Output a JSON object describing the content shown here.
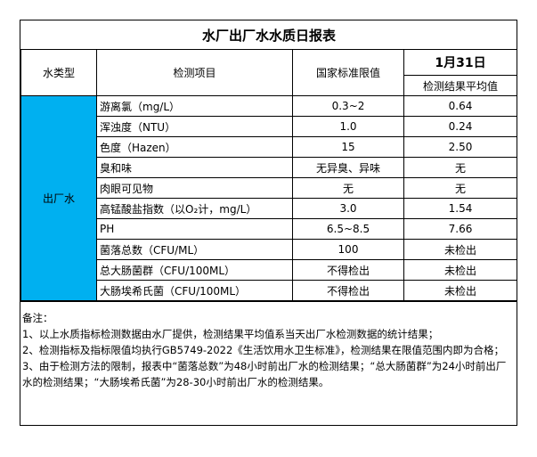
{
  "title": "水厂出厂水水质日报表",
  "header": {
    "water_type": "水类型",
    "item": "检测项目",
    "limit": "国家标准限值",
    "date": "1月31日",
    "result": "检测结果平均值"
  },
  "water_type_value": "出厂水",
  "water_type_color": "#00b0f0",
  "rows": [
    {
      "item": "游离氯（mg/L）",
      "limit": "0.3~2",
      "result": "0.64"
    },
    {
      "item": "浑浊度（NTU）",
      "limit": "1.0",
      "result": "0.24"
    },
    {
      "item": "色度（Hazen）",
      "limit": "15",
      "result": "2.50"
    },
    {
      "item": "臭和味",
      "limit": "无异臭、异味",
      "result": "无"
    },
    {
      "item": "肉眼可见物",
      "limit": "无",
      "result": "无"
    },
    {
      "item": "高锰酸盐指数（以O₂计，mg/L）",
      "limit": "3.0",
      "result": "1.54"
    },
    {
      "item": "PH",
      "limit": "6.5~8.5",
      "result": "7.66"
    },
    {
      "item": "菌落总数（CFU/ML）",
      "limit": "100",
      "result": "未检出"
    },
    {
      "item": "总大肠菌群（CFU/100ML）",
      "limit": "不得检出",
      "result": "未检出"
    },
    {
      "item": "大肠埃希氏菌（CFU/100ML）",
      "limit": "不得检出",
      "result": "未检出"
    }
  ],
  "notes": {
    "heading": "备注：",
    "lines": [
      "1、以上水质指标检测数据由水厂提供，检测结果平均值系当天出厂水检测数据的统计结果；",
      "2、检测指标及指标限值均执行GB5749-2022《生活饮用水卫生标准》，检测结果在限值范围内即为合格；",
      "3、由于检测方法的限制，报表中“菌落总数”为48小时前出厂水的检测结果；“总大肠菌群”为24小时前出厂水的检测结果；“大肠埃希氏菌”为28-30小时前出厂水的检测结果。"
    ]
  }
}
